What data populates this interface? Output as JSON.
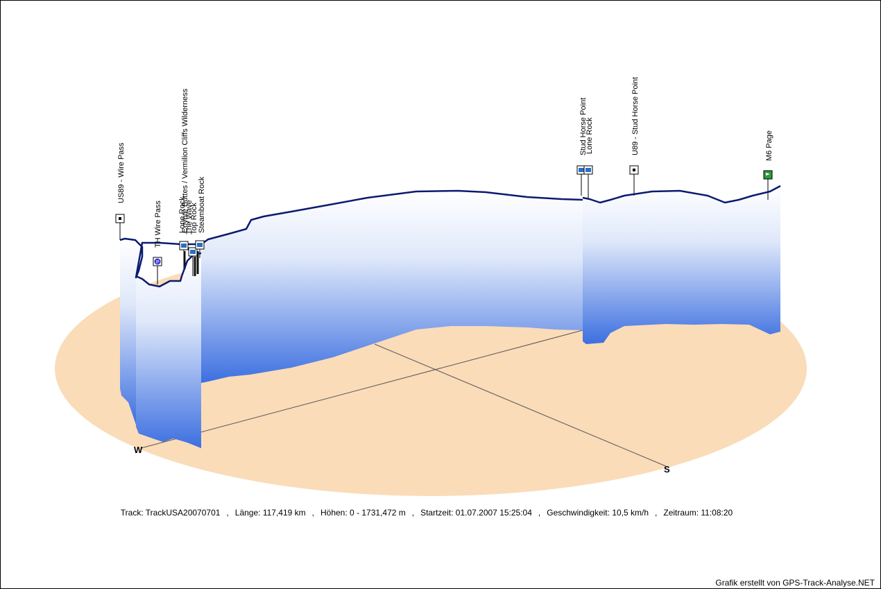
{
  "chart_data": {
    "type": "area",
    "track": "TrackUSA20070701",
    "compass": {
      "west_label": "W",
      "south_label": "S"
    },
    "waypoints": [
      {
        "name": "US89 - Wire Pass",
        "icon": "black-square-icon"
      },
      {
        "name": "TH Wire Pass",
        "icon": "parking-icon"
      },
      {
        "name": "Coyote Buttes / Vermilion Cliffs Wilderness",
        "icon": "camera-icon"
      },
      {
        "name": "Lone Rock",
        "icon": "camera-icon"
      },
      {
        "name": "The Wave",
        "icon": "camera-icon"
      },
      {
        "name": "Top Rock",
        "icon": "camera-icon"
      },
      {
        "name": "Steamboat Rock",
        "icon": "camera-icon"
      },
      {
        "name": "Stud Horse Point",
        "icon": "camera-icon"
      },
      {
        "name": "Lone Rock",
        "icon": "camera-icon"
      },
      {
        "name": "U89 - Stud Horse Point",
        "icon": "black-square-icon"
      },
      {
        "name": "M6 Page",
        "icon": "green-flag-icon"
      }
    ],
    "colors": {
      "ground": "#fadcb9",
      "profile_line": "#0c1a70",
      "wall_top": "#ffffff",
      "wall_bottom": "#3c6fe0"
    }
  },
  "stats": {
    "track_label": "Track:",
    "track_value": "TrackUSA20070701",
    "length_label": "Länge:",
    "length_value": "117,419 km",
    "elev_label": "Höhen:",
    "elev_value": "0 - 1731,472 m",
    "start_label": "Startzeit:",
    "start_value": "01.07.2007 15:25:04",
    "speed_label": "Geschwindigkeit:",
    "speed_value": "10,5 km/h",
    "duration_label": "Zeitraum:",
    "duration_value": "11:08:20"
  },
  "credit": "Grafik erstellt von GPS-Track-Analyse.NET"
}
